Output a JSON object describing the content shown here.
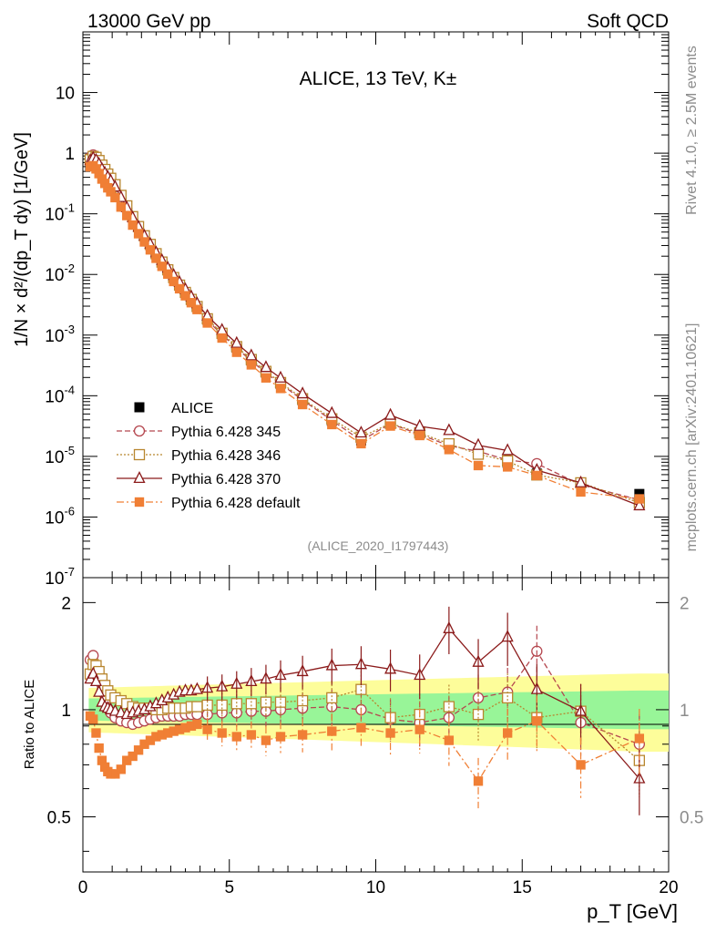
{
  "header": {
    "left": "13000 GeV pp",
    "right": "Soft QCD"
  },
  "side_labels": {
    "rivet": "Rivet 4.1.0, ≥ 2.5M events",
    "mcplots": "mcplots.cern.ch [arXiv:2401.10621]"
  },
  "chart_data": {
    "type": "line",
    "title": "ALICE, 13 TeV, K±",
    "analysis_id": "(ALICE_2020_I1797443)",
    "xlabel": "p_T [GeV]",
    "ylabel": "1/N × d²/(dp_T dy) [1/GeV]",
    "ratio_ylabel": "Ratio to ALICE",
    "xlim": [
      0,
      20
    ],
    "ylim": [
      1e-07,
      100
    ],
    "ratio_ylim": [
      0.35,
      2.35
    ],
    "x_ticks": [
      "0",
      "5",
      "10",
      "15",
      "20"
    ],
    "y_ticks": [
      "10",
      "1",
      "10^-1",
      "10^-2",
      "10^-3",
      "10^-4",
      "10^-5",
      "10^-6",
      "10^-7"
    ],
    "ratio_ticks": [
      "0.5",
      "1",
      "2"
    ],
    "x": [
      0.25,
      0.35,
      0.45,
      0.55,
      0.65,
      0.75,
      0.85,
      0.95,
      1.1,
      1.3,
      1.5,
      1.7,
      1.9,
      2.1,
      2.3,
      2.5,
      2.7,
      2.9,
      3.1,
      3.3,
      3.5,
      3.7,
      3.9,
      4.25,
      4.75,
      5.25,
      5.75,
      6.25,
      6.75,
      7.5,
      8.5,
      9.5,
      10.5,
      11.5,
      12.5,
      13.5,
      14.5,
      15.5,
      17.0,
      19.0
    ],
    "series": [
      {
        "name": "ALICE",
        "style": "data",
        "color": "#000000",
        "values": [
          0.62,
          0.66,
          0.64,
          0.59,
          0.52,
          0.46,
          0.4,
          0.35,
          0.28,
          0.19,
          0.13,
          0.088,
          0.061,
          0.043,
          0.031,
          0.022,
          0.016,
          0.0118,
          0.0088,
          0.0066,
          0.005,
          0.0038,
          0.0029,
          0.0018,
          0.00104,
          0.00062,
          0.00038,
          0.00024,
          0.000157,
          8.42e-05,
          3.85e-05,
          1.82e-05,
          3.68e-05,
          2.51e-05,
          1.58e-05,
          1.12e-05,
          7.8e-06,
          5.2e-06,
          3.7e-06,
          2.4e-06
        ]
      },
      {
        "name": "Pythia 6.428 345",
        "style": "circle-dashed",
        "color": "#b5474f",
        "ratios": [
          1.38,
          1.42,
          1.33,
          1.22,
          1.13,
          1.06,
          1.01,
          0.98,
          0.95,
          0.93,
          0.92,
          0.91,
          0.92,
          0.93,
          0.94,
          0.95,
          0.96,
          0.96,
          0.96,
          0.96,
          0.97,
          0.97,
          0.97,
          0.97,
          0.98,
          0.98,
          0.99,
          0.99,
          1.0,
          1.01,
          1.02,
          1.0,
          0.94,
          0.92,
          0.95,
          1.08,
          1.12,
          1.46,
          0.92,
          0.8
        ]
      },
      {
        "name": "Pythia 6.428 346",
        "style": "square-dotted",
        "color": "#b8862e",
        "ratios": [
          1.26,
          1.34,
          1.33,
          1.28,
          1.22,
          1.17,
          1.13,
          1.1,
          1.08,
          1.06,
          1.04,
          1.02,
          1.01,
          1.01,
          1.01,
          1.0,
          1.0,
          1.01,
          1.01,
          1.01,
          1.01,
          1.02,
          1.02,
          1.03,
          1.03,
          1.04,
          1.04,
          1.05,
          1.05,
          1.06,
          1.08,
          1.14,
          0.95,
          0.97,
          1.02,
          0.97,
          1.08,
          0.95,
          0.99,
          0.72
        ]
      },
      {
        "name": "Pythia 6.428 370",
        "style": "triangle-solid",
        "color": "#8b1a1a",
        "ratios": [
          1.22,
          1.26,
          1.2,
          1.12,
          1.05,
          1.02,
          1.01,
          1.0,
          0.99,
          0.98,
          0.97,
          0.98,
          0.99,
          1.0,
          1.02,
          1.04,
          1.06,
          1.08,
          1.1,
          1.12,
          1.13,
          1.13,
          1.14,
          1.15,
          1.16,
          1.18,
          1.2,
          1.22,
          1.25,
          1.28,
          1.33,
          1.34,
          1.3,
          1.25,
          1.69,
          1.36,
          1.6,
          1.14,
          0.99,
          0.64
        ]
      },
      {
        "name": "Pythia 6.428 default",
        "style": "filled-square-dashdot",
        "color": "#f07f35",
        "ratios": [
          0.96,
          0.94,
          0.86,
          0.78,
          0.72,
          0.69,
          0.67,
          0.66,
          0.66,
          0.68,
          0.72,
          0.74,
          0.77,
          0.8,
          0.82,
          0.84,
          0.85,
          0.86,
          0.87,
          0.88,
          0.89,
          0.9,
          0.91,
          0.88,
          0.86,
          0.84,
          0.85,
          0.82,
          0.84,
          0.85,
          0.87,
          0.89,
          0.86,
          0.88,
          0.82,
          0.63,
          0.86,
          0.93,
          0.7,
          0.83
        ]
      }
    ]
  }
}
